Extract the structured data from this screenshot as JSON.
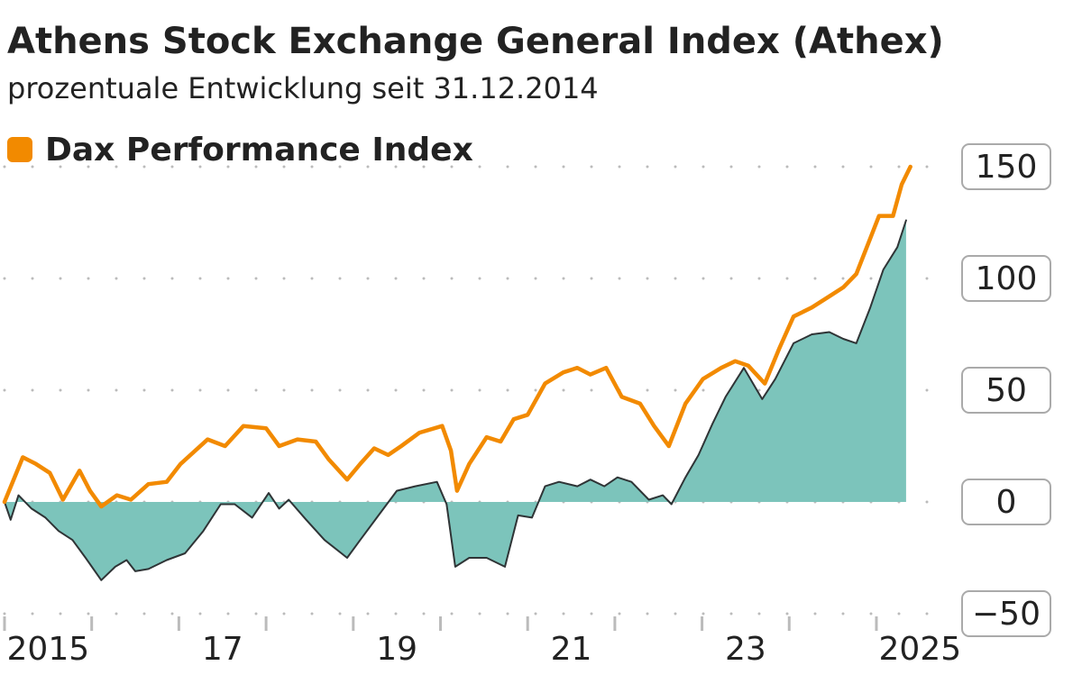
{
  "chart_data": {
    "type": "line",
    "title": "Athens Stock Exchange General Index (Athex)",
    "subtitle": "prozentuale Entwicklung seit 31.12.2014",
    "series": [
      {
        "name": "Dax Performance Index",
        "color": "#f28a00",
        "x": [
          2015.0,
          2015.21,
          2015.36,
          2015.52,
          2015.67,
          2015.86,
          2015.98,
          2016.11,
          2016.29,
          2016.45,
          2016.65,
          2016.86,
          2017.02,
          2017.33,
          2017.53,
          2017.74,
          2018.0,
          2018.15,
          2018.36,
          2018.57,
          2018.72,
          2018.93,
          2019.08,
          2019.24,
          2019.4,
          2019.55,
          2019.76,
          2020.02,
          2020.12,
          2020.19,
          2020.33,
          2020.53,
          2020.69,
          2020.84,
          2021.0,
          2021.2,
          2021.41,
          2021.57,
          2021.72,
          2021.9,
          2022.08,
          2022.29,
          2022.45,
          2022.62,
          2022.81,
          2023.01,
          2023.22,
          2023.38,
          2023.53,
          2023.72,
          2023.89,
          2024.05,
          2024.26,
          2024.46,
          2024.62,
          2024.77,
          2024.93,
          2025.03,
          2025.19,
          2025.29,
          2025.39
        ],
        "values": [
          0,
          20,
          17,
          13,
          1,
          14,
          5,
          -2,
          3,
          1,
          8,
          9,
          17,
          28,
          25,
          34,
          33,
          25,
          28,
          27,
          19,
          10,
          17,
          24,
          21,
          25,
          31,
          34,
          23,
          5,
          17,
          29,
          27,
          37,
          39,
          53,
          58,
          60,
          57,
          60,
          47,
          44,
          34,
          25,
          44,
          55,
          60,
          63,
          61,
          53,
          69,
          83,
          87,
          92,
          96,
          102,
          118,
          128,
          128,
          142,
          150
        ]
      },
      {
        "color": "#2f3436",
        "fill": "#7cc4bb",
        "x": [
          2015.0,
          2015.07,
          2015.16,
          2015.31,
          2015.47,
          2015.62,
          2015.78,
          2015.93,
          2016.11,
          2016.27,
          2016.4,
          2016.5,
          2016.65,
          2016.86,
          2017.07,
          2017.28,
          2017.48,
          2017.64,
          2017.84,
          2018.03,
          2018.15,
          2018.26,
          2018.46,
          2018.67,
          2018.93,
          2019.08,
          2019.29,
          2019.5,
          2019.71,
          2019.96,
          2020.07,
          2020.17,
          2020.33,
          2020.53,
          2020.74,
          2020.89,
          2021.05,
          2021.2,
          2021.36,
          2021.57,
          2021.72,
          2021.88,
          2022.03,
          2022.19,
          2022.39,
          2022.55,
          2022.65,
          2022.81,
          2022.96,
          2023.12,
          2023.27,
          2023.48,
          2023.69,
          2023.84,
          2024.05,
          2024.26,
          2024.46,
          2024.62,
          2024.77,
          2024.93,
          2025.08,
          2025.24,
          2025.34
        ],
        "values": [
          0,
          -8,
          3,
          -3,
          -7,
          -13,
          -17,
          -25,
          -35,
          -29,
          -26,
          -31,
          -30,
          -26,
          -23,
          -13,
          -1,
          -1,
          -7,
          4,
          -3,
          1,
          -8,
          -17,
          -25,
          -17,
          -6,
          5,
          7,
          9,
          -1,
          -29,
          -25,
          -25,
          -29,
          -6,
          -7,
          7,
          9,
          7,
          10,
          7,
          11,
          9,
          1,
          3,
          -1,
          11,
          21,
          35,
          47,
          60,
          46,
          55,
          71,
          75,
          76,
          73,
          71,
          87,
          104,
          114,
          126
        ]
      }
    ],
    "xlim": [
      2015,
      2025.6
    ],
    "xticks": [
      {
        "value": 2015,
        "label": "2015"
      },
      {
        "value": 2016,
        "label": null
      },
      {
        "value": 2017,
        "label": "17"
      },
      {
        "value": 2018,
        "label": null
      },
      {
        "value": 2019,
        "label": "19"
      },
      {
        "value": 2020,
        "label": null
      },
      {
        "value": 2021,
        "label": "21"
      },
      {
        "value": 2022,
        "label": null
      },
      {
        "value": 2023,
        "label": "23"
      },
      {
        "value": 2024,
        "label": null
      },
      {
        "value": 2025,
        "label": "2025"
      }
    ],
    "ylim": [
      -50,
      150
    ],
    "yticks": [
      {
        "value": -50,
        "label": "−50"
      },
      0,
      50,
      100,
      150
    ],
    "grid": true
  }
}
